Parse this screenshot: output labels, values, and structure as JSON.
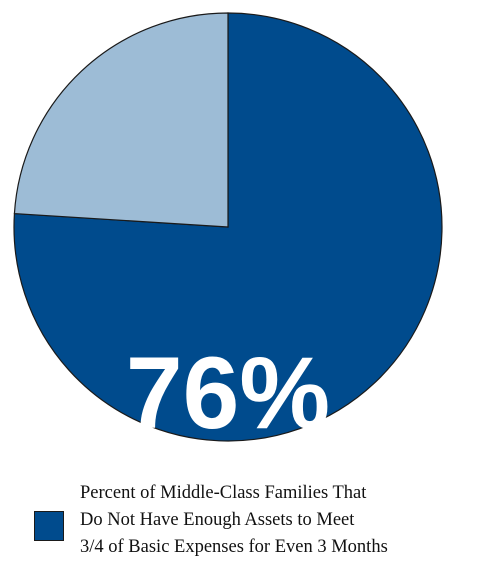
{
  "chart_data": {
    "type": "pie",
    "slices": [
      {
        "value": 76,
        "color": "#004b8d"
      },
      {
        "value": 24,
        "color": "#9dbcd6"
      }
    ],
    "data_label": "76%",
    "legend": {
      "placement": "bottom",
      "color": "#004b8d",
      "lines": [
        "Percent of Middle-Class Families That",
        "Do Not Have Enough Assets to Meet",
        "3/4 of Basic Expenses for Even 3 Months"
      ]
    }
  }
}
